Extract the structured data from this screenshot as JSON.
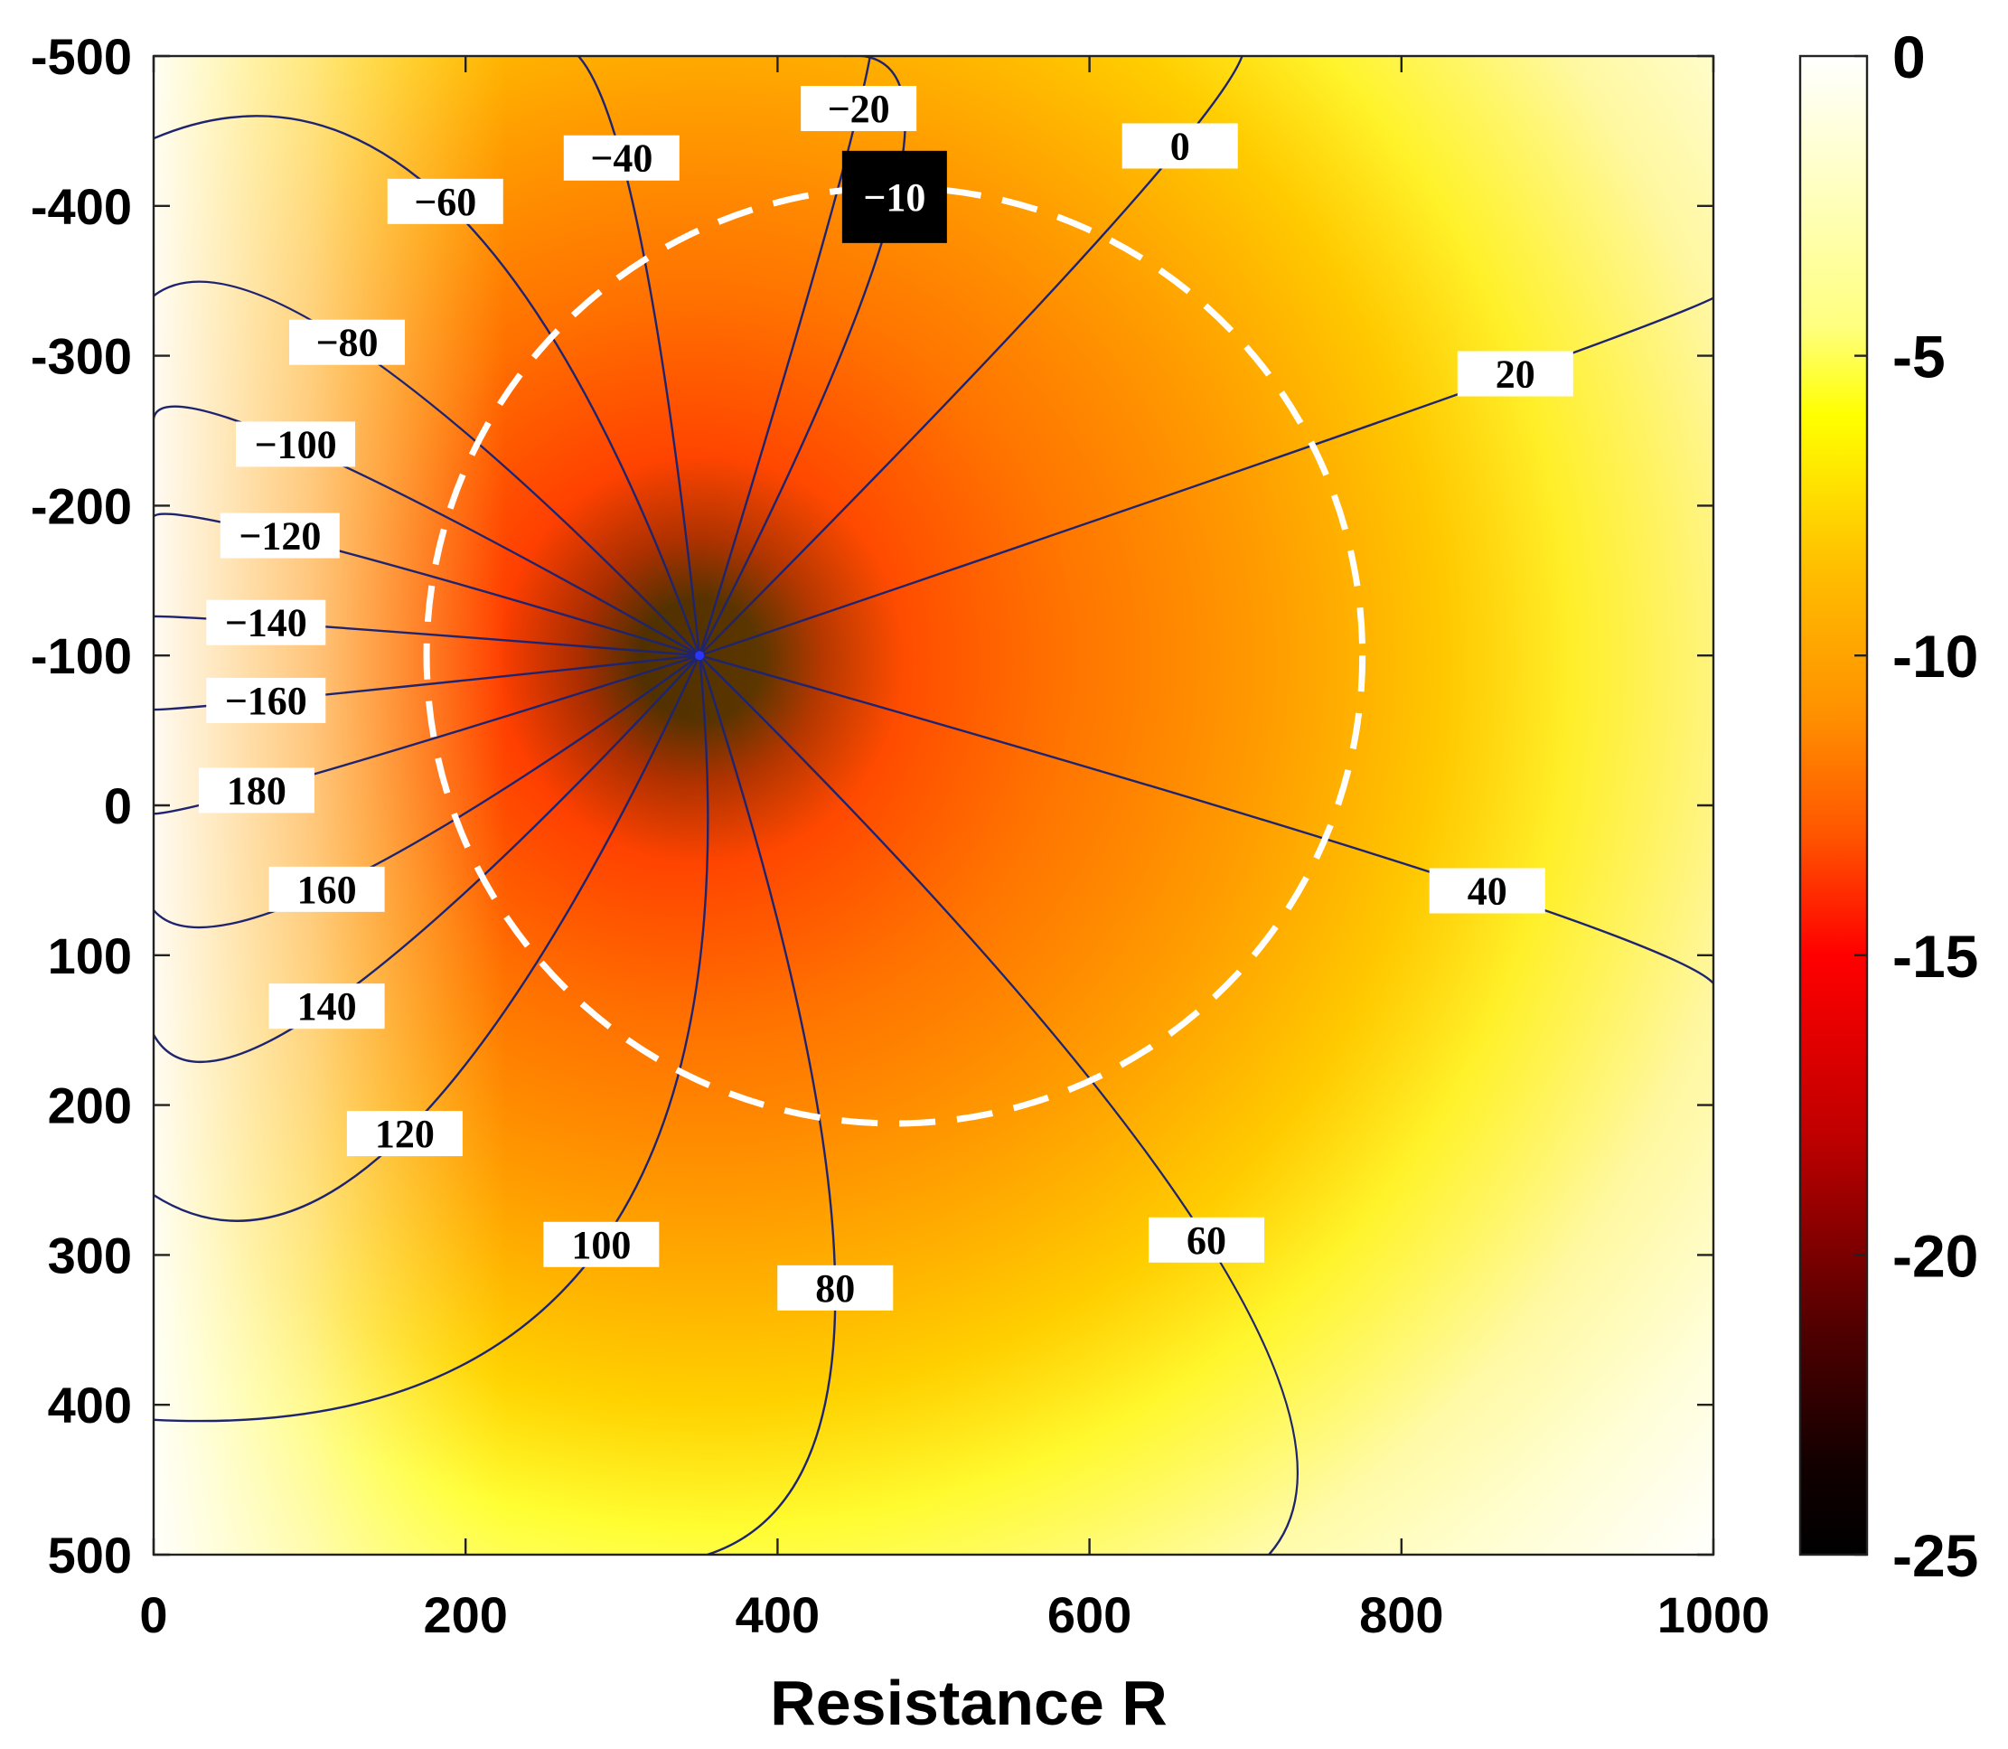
{
  "chart_data": {
    "type": "heatmap",
    "title": "",
    "xlabel": "Resistance R",
    "ylabel": "",
    "xlim": [
      0,
      1000
    ],
    "ylim": [
      -500,
      500
    ],
    "y_reversed": true,
    "x_ticks": [
      "0",
      "200",
      "400",
      "600",
      "800",
      "1000"
    ],
    "x_tick_values": [
      0,
      200,
      400,
      600,
      800,
      1000
    ],
    "y_ticks": [
      "-500",
      "-400",
      "-300",
      "-200",
      "-100",
      "0",
      "100",
      "200",
      "300",
      "400",
      "500"
    ],
    "y_tick_values": [
      -500,
      -400,
      -300,
      -200,
      -100,
      0,
      100,
      200,
      300,
      400,
      500
    ],
    "colorbar": {
      "range": [
        -25,
        0
      ],
      "ticks": [
        "0",
        "-5",
        "-10",
        "-15",
        "-20",
        "-25"
      ],
      "tick_values": [
        0,
        -5,
        -10,
        -15,
        -20,
        -25
      ],
      "colormap": [
        "#000000",
        "#ff0000",
        "#ffff00",
        "#ffffff"
      ]
    },
    "field": {
      "singularity": [
        350,
        -100
      ],
      "min_value": -25,
      "max_value": 0,
      "rings": [
        {
          "value": -10,
          "x": 350,
          "y": -100
        }
      ]
    },
    "reference_circle": {
      "center": [
        475,
        -100
      ],
      "radius": 300,
      "style": "white dashed"
    },
    "contours": [
      {
        "label": "−40",
        "value": -40,
        "end": [
          245,
          -500
        ],
        "label_at": [
          300,
          -432
        ]
      },
      {
        "label": "−20",
        "value": -20,
        "end": [
          443,
          -500
        ],
        "label_at": [
          452,
          -465
        ]
      },
      {
        "label": "−10",
        "value": -10,
        "end": [
          443,
          -500
        ],
        "label_at": [
          475,
          -406
        ],
        "highlight": true
      },
      {
        "label": "0",
        "value": 0,
        "end": [
          665,
          -500
        ],
        "label_at": [
          658,
          -440
        ]
      },
      {
        "label": "20",
        "value": 20,
        "end": [
          1000,
          -343
        ],
        "label_at": [
          873,
          -288
        ]
      },
      {
        "label": "40",
        "value": 40,
        "end": [
          1000,
          125
        ],
        "label_at": [
          855,
          57
        ]
      },
      {
        "label": "60",
        "value": 60,
        "end": [
          715,
          500
        ],
        "label_at": [
          675,
          290
        ]
      },
      {
        "label": "80",
        "value": 80,
        "end": [
          355,
          500
        ],
        "label_at": [
          437,
          322
        ]
      },
      {
        "label": "100",
        "value": 100,
        "end": [
          0,
          410
        ],
        "label_at": [
          287,
          293
        ]
      },
      {
        "label": "120",
        "value": 120,
        "end": [
          0,
          260
        ],
        "label_at": [
          161,
          219
        ]
      },
      {
        "label": "140",
        "value": 140,
        "end": [
          0,
          153
        ],
        "label_at": [
          111,
          134
        ]
      },
      {
        "label": "160",
        "value": 160,
        "end": [
          0,
          70
        ],
        "label_at": [
          111,
          56
        ]
      },
      {
        "label": "180",
        "value": 180,
        "end": [
          0,
          0
        ],
        "label_at": [
          66,
          -10
        ]
      },
      {
        "label": "−160",
        "value": -160,
        "end": [
          0,
          -65
        ],
        "label_at": [
          72,
          -70
        ]
      },
      {
        "label": "−140",
        "value": -140,
        "end": [
          0,
          -125
        ],
        "label_at": [
          72,
          -122
        ]
      },
      {
        "label": "−120",
        "value": -120,
        "end": [
          0,
          -190
        ],
        "label_at": [
          81,
          -180
        ]
      },
      {
        "label": "−100",
        "value": -100,
        "end": [
          0,
          -258
        ],
        "label_at": [
          91,
          -241
        ]
      },
      {
        "label": "−80",
        "value": -80,
        "end": [
          0,
          -340
        ],
        "label_at": [
          124,
          -309
        ]
      },
      {
        "label": "−60",
        "value": -60,
        "end": [
          0,
          -445
        ],
        "label_at": [
          187,
          -403
        ]
      }
    ]
  }
}
